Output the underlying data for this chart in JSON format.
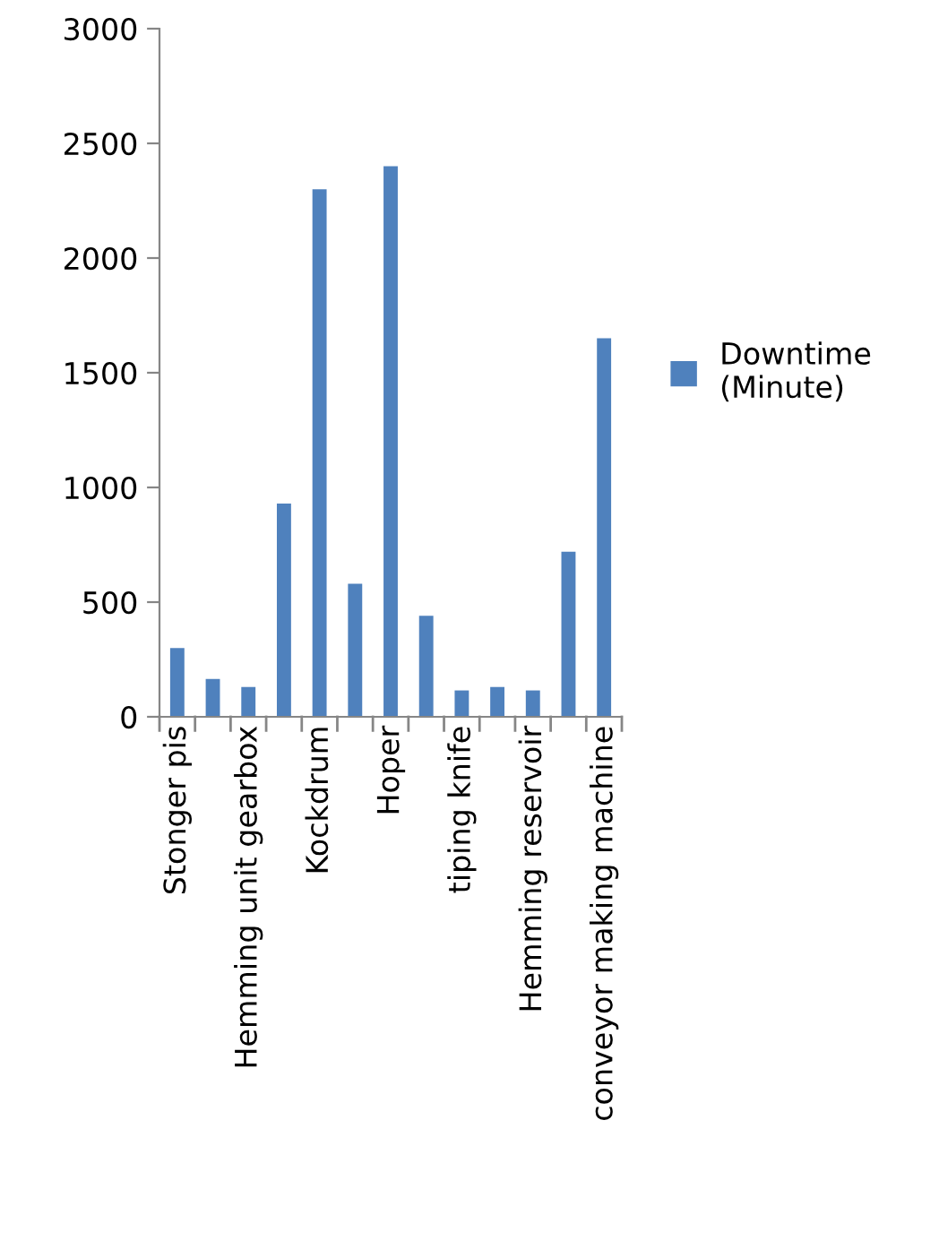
{
  "chart_data": {
    "type": "bar",
    "categories": [
      "Stonger pis",
      null,
      "Hemming unit gearbox",
      null,
      "Kockdrum",
      null,
      "Hoper",
      null,
      "tiping knife",
      null,
      "Hemming reservoir",
      null,
      "conveyor making machine"
    ],
    "series": [
      {
        "name": "Downtime (Minute)",
        "color": "#4f81bd",
        "values": [
          300,
          165,
          130,
          930,
          2300,
          580,
          2400,
          440,
          115,
          130,
          115,
          720,
          1650
        ]
      }
    ],
    "ylim": [
      0,
      3000
    ],
    "yticks": [
      0,
      500,
      1000,
      1500,
      2000,
      2500,
      3000
    ],
    "grid": false,
    "legend": "right"
  }
}
